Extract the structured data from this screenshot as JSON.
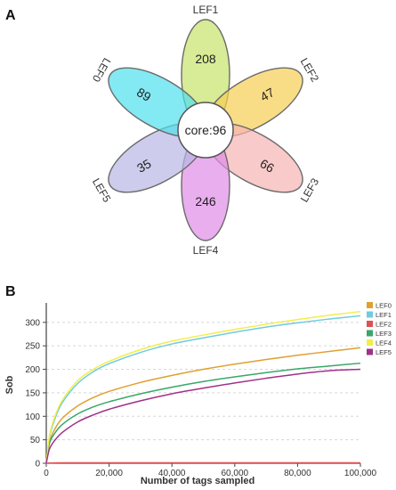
{
  "panel_a": {
    "label": "A",
    "core_label": "core:96",
    "petals": [
      {
        "name": "LEF1",
        "value": "208",
        "color": "#c8e26a"
      },
      {
        "name": "LEF2",
        "value": "47",
        "color": "#f6cf52"
      },
      {
        "name": "LEF3",
        "value": "66",
        "color": "#f7b4b4"
      },
      {
        "name": "LEF4",
        "value": "246",
        "color": "#e08be6"
      },
      {
        "name": "LEF5",
        "value": "35",
        "color": "#b8b6e4"
      },
      {
        "name": "LEF0",
        "value": "89",
        "color": "#4fe0ec"
      }
    ]
  },
  "panel_b": {
    "label": "B"
  },
  "chart_data": [
    {
      "type": "venn",
      "sets": [
        "LEF0",
        "LEF1",
        "LEF2",
        "LEF3",
        "LEF4",
        "LEF5"
      ],
      "unique_counts": {
        "LEF0": 89,
        "LEF1": 208,
        "LEF2": 47,
        "LEF3": 66,
        "LEF4": 246,
        "LEF5": 35
      },
      "core": 96
    },
    {
      "type": "line",
      "xlabel": "Number of tags sampled",
      "ylabel": "Sob",
      "xlim": [
        0,
        100000
      ],
      "ylim": [
        0,
        330
      ],
      "xticks": [
        0,
        20000,
        40000,
        60000,
        80000,
        100000
      ],
      "xtick_labels": [
        "0",
        "20,000",
        "40,000",
        "60,000",
        "80,000",
        "100,000"
      ],
      "yticks": [
        0,
        50,
        100,
        150,
        200,
        250,
        300
      ],
      "grid": true,
      "legend": "right",
      "x": [
        0,
        1000,
        2500,
        5000,
        10000,
        15000,
        20000,
        30000,
        40000,
        50000,
        60000,
        70000,
        80000,
        90000,
        100000
      ],
      "series": [
        {
          "name": "LEF0",
          "color": "#e0a030",
          "values": [
            0,
            45,
            70,
            95,
            122,
            140,
            153,
            172,
            187,
            200,
            211,
            221,
            230,
            238,
            246
          ]
        },
        {
          "name": "LEF1",
          "color": "#6fcbe0",
          "values": [
            0,
            55,
            90,
            128,
            170,
            195,
            212,
            236,
            254,
            267,
            279,
            290,
            299,
            307,
            314
          ]
        },
        {
          "name": "LEF2",
          "color": "#e05050",
          "values": [
            0,
            0.5,
            0.8,
            1,
            1,
            1,
            1,
            1,
            1,
            1,
            1,
            1,
            1,
            1,
            1
          ]
        },
        {
          "name": "LEF3",
          "color": "#3aa66a",
          "values": [
            0,
            42,
            62,
            82,
            105,
            120,
            131,
            148,
            162,
            174,
            184,
            193,
            201,
            207,
            213
          ]
        },
        {
          "name": "LEF4",
          "color": "#f2ee4a",
          "values": [
            0,
            58,
            95,
            133,
            176,
            200,
            217,
            242,
            260,
            273,
            285,
            296,
            306,
            315,
            323
          ]
        },
        {
          "name": "LEF5",
          "color": "#a0308a",
          "values": [
            0,
            30,
            47,
            65,
            88,
            103,
            115,
            133,
            148,
            160,
            171,
            181,
            190,
            197,
            200
          ]
        }
      ]
    }
  ]
}
